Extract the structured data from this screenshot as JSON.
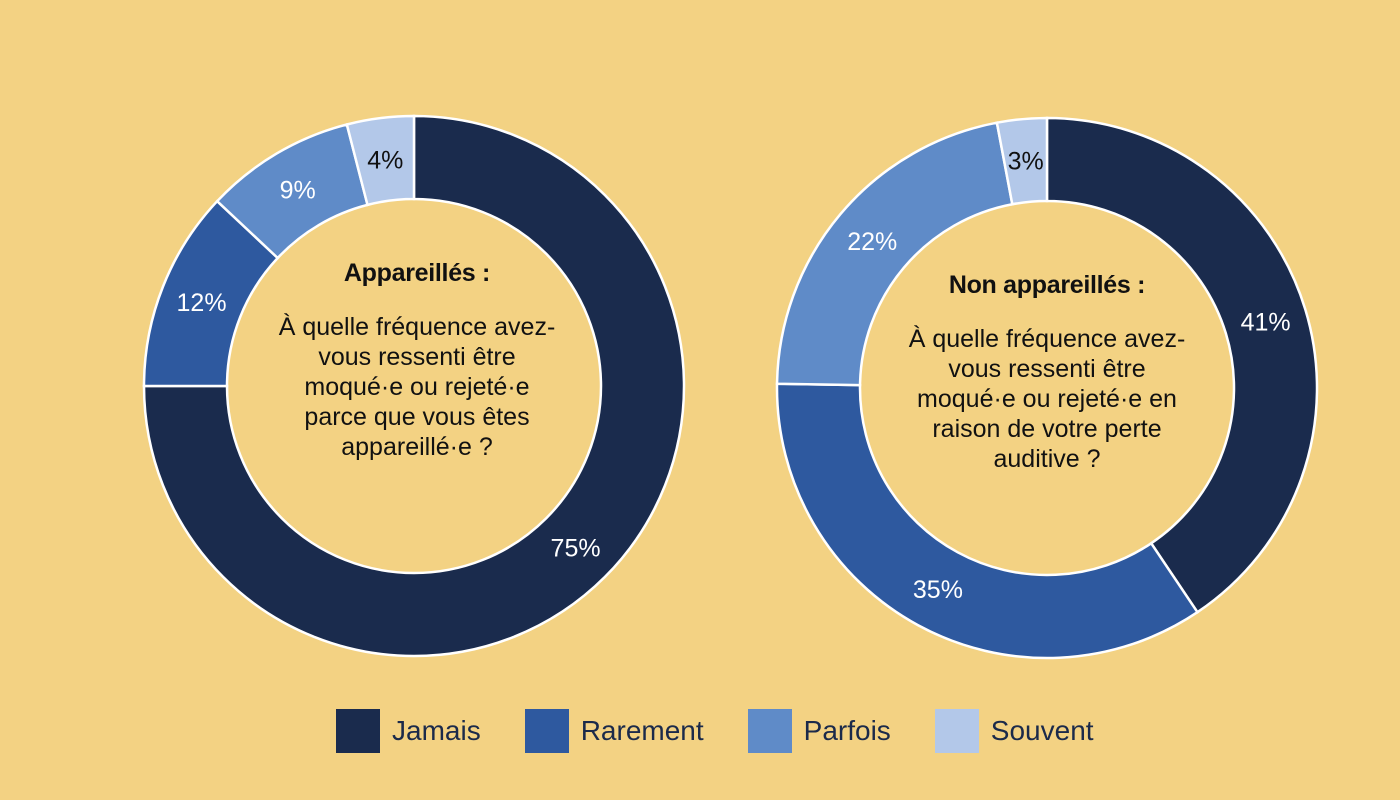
{
  "chart_data": [
    {
      "type": "donut",
      "title": "Appareillés :",
      "question": "À quelle fréquence avez-vous ressenti être moqué·e ou rejeté·e parce que vous êtes appareillé·e ?",
      "categories": [
        "Jamais",
        "Rarement",
        "Parfois",
        "Souvent"
      ],
      "values": [
        75,
        12,
        9,
        4
      ],
      "labels": [
        "75%",
        "12%",
        "9%",
        "4%"
      ]
    },
    {
      "type": "donut",
      "title": "Non appareillés :",
      "question": "À quelle fréquence avez-vous ressenti être moqué·e ou rejeté·e en raison de votre perte auditive ?",
      "categories": [
        "Jamais",
        "Rarement",
        "Parfois",
        "Souvent"
      ],
      "values": [
        41,
        35,
        22,
        3
      ],
      "labels": [
        "41%",
        "35%",
        "22%",
        "3%"
      ]
    }
  ],
  "legend": [
    {
      "label": "Jamais",
      "color": "#1a2b4d"
    },
    {
      "label": "Rarement",
      "color": "#2e599f"
    },
    {
      "label": "Parfois",
      "color": "#5f8bc8"
    },
    {
      "label": "Souvent",
      "color": "#b3c8e9"
    }
  ],
  "colors": {
    "background": "#f3d283",
    "label_dark": "#111111",
    "label_light": "#ffffff"
  }
}
